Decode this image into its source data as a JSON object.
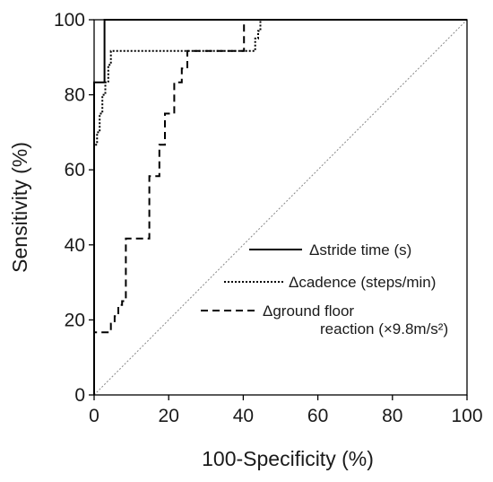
{
  "chart_data": {
    "type": "line",
    "title": "",
    "xlabel": "100-Specificity (%)",
    "ylabel": "Sensitivity (%)",
    "xlim": [
      0,
      100
    ],
    "ylim": [
      0,
      100
    ],
    "xticks": [
      "0",
      "20",
      "40",
      "60",
      "80",
      "100"
    ],
    "yticks": [
      "0",
      "20",
      "40",
      "60",
      "80",
      "100"
    ],
    "grid": false,
    "legend_position": "center-right",
    "series": [
      {
        "name": "Δstride time (s)",
        "style": "solid",
        "color": "#000000",
        "points": [
          [
            0,
            0
          ],
          [
            0,
            83.3
          ],
          [
            2.8,
            83.3
          ],
          [
            2.8,
            100
          ],
          [
            100,
            100
          ]
        ]
      },
      {
        "name": "Δcadence (steps/min)",
        "style": "dotted",
        "color": "#000000",
        "points": [
          [
            0,
            0
          ],
          [
            0,
            66.7
          ],
          [
            0.8,
            66.7
          ],
          [
            0.8,
            70
          ],
          [
            1.5,
            70
          ],
          [
            1.5,
            75
          ],
          [
            2.2,
            75
          ],
          [
            2.2,
            80
          ],
          [
            3,
            80
          ],
          [
            3,
            83.3
          ],
          [
            3.8,
            83.3
          ],
          [
            3.8,
            88
          ],
          [
            4.5,
            88
          ],
          [
            4.5,
            91.7
          ],
          [
            43.2,
            91.7
          ],
          [
            43.2,
            95
          ],
          [
            44,
            95
          ],
          [
            44,
            97
          ],
          [
            44.6,
            97
          ],
          [
            44.6,
            100
          ],
          [
            100,
            100
          ]
        ]
      },
      {
        "name": "Δground floor reaction (×9.8m/s²)",
        "legend_lines": [
          "Δground floor",
          "reaction (×9.8m/s²)"
        ],
        "style": "dashed",
        "color": "#000000",
        "points": [
          [
            0,
            0
          ],
          [
            0,
            16.7
          ],
          [
            4.5,
            16.7
          ],
          [
            4.5,
            19
          ],
          [
            5.5,
            19
          ],
          [
            5.5,
            21
          ],
          [
            6.5,
            21
          ],
          [
            6.5,
            24
          ],
          [
            7.5,
            24
          ],
          [
            7.5,
            25
          ],
          [
            8.5,
            25
          ],
          [
            8.5,
            41.7
          ],
          [
            14.8,
            41.7
          ],
          [
            14.8,
            58.3
          ],
          [
            17.5,
            58.3
          ],
          [
            17.5,
            66.7
          ],
          [
            19,
            66.7
          ],
          [
            19,
            75
          ],
          [
            21.5,
            75
          ],
          [
            21.5,
            83.3
          ],
          [
            23.5,
            83.3
          ],
          [
            23.5,
            87
          ],
          [
            25,
            87
          ],
          [
            25,
            91.7
          ],
          [
            40.2,
            91.7
          ],
          [
            40.2,
            100
          ],
          [
            100,
            100
          ]
        ]
      }
    ],
    "reference_line": {
      "from": [
        0,
        0
      ],
      "to": [
        100,
        100
      ],
      "style": "dotted",
      "color": "#888888"
    }
  }
}
